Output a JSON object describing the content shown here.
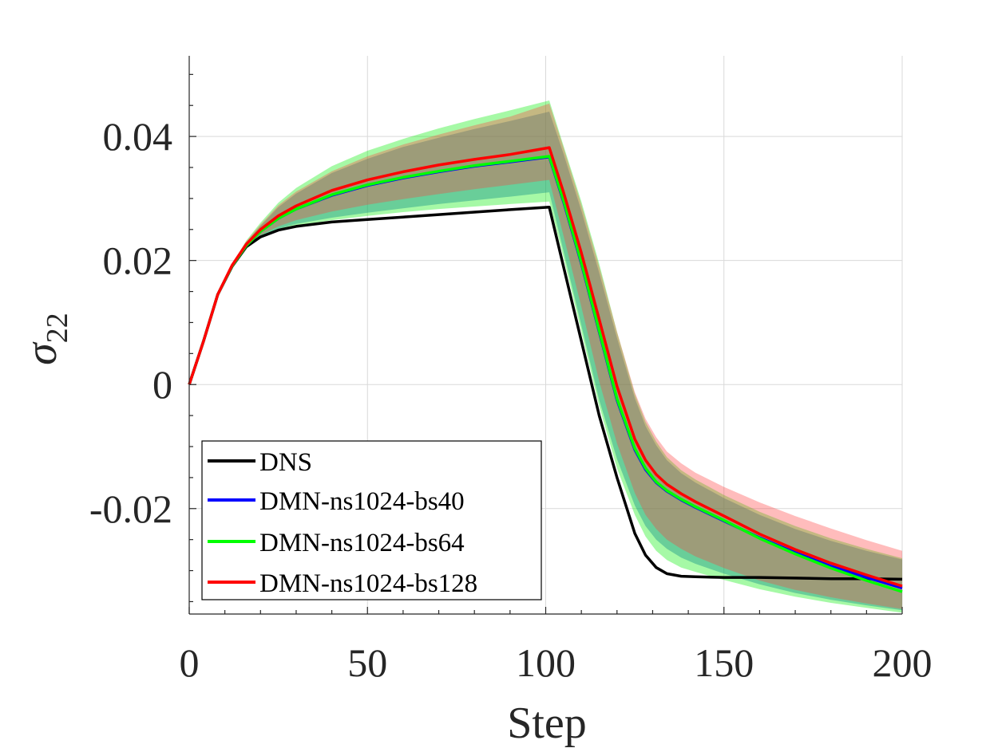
{
  "chart_data": {
    "type": "line",
    "title": "",
    "xlabel": "Step",
    "ylabel_base": "σ",
    "ylabel_subscript": "22",
    "xlim": [
      0,
      200
    ],
    "ylim": [
      -0.037,
      0.053
    ],
    "xticks": [
      0,
      50,
      100,
      150,
      200
    ],
    "xtick_labels": [
      "0",
      "50",
      "100",
      "150",
      "200"
    ],
    "yticks": [
      -0.02,
      0,
      0.02,
      0.04
    ],
    "ytick_labels": [
      "-0.02",
      "0",
      "0.02",
      "0.04"
    ],
    "grid": true,
    "legend_position": "bottom-left",
    "series": [
      {
        "name": "DNS",
        "color": "#000000",
        "x": [
          0,
          4,
          8,
          12,
          16,
          20,
          25,
          30,
          40,
          50,
          60,
          70,
          80,
          90,
          101,
          105,
          110,
          115,
          120,
          125,
          128,
          131,
          134,
          138,
          142,
          150,
          160,
          170,
          180,
          190,
          200
        ],
        "y": [
          0,
          0.007,
          0.0145,
          0.019,
          0.0222,
          0.0238,
          0.0249,
          0.0255,
          0.0262,
          0.0266,
          0.027,
          0.0274,
          0.0278,
          0.0282,
          0.0286,
          0.019,
          0.007,
          -0.005,
          -0.015,
          -0.024,
          -0.0275,
          -0.0295,
          -0.0305,
          -0.0309,
          -0.031,
          -0.0311,
          -0.0311,
          -0.0312,
          -0.0313,
          -0.0313,
          -0.0314
        ]
      },
      {
        "name": "DMN-ns1024-bs40",
        "color": "#0000ff",
        "x": [
          0,
          4,
          8,
          12,
          16,
          20,
          25,
          30,
          40,
          50,
          60,
          70,
          80,
          90,
          101,
          105,
          110,
          115,
          120,
          125,
          128,
          131,
          134,
          138,
          142,
          150,
          160,
          170,
          180,
          190,
          200
        ],
        "y": [
          0,
          0.007,
          0.0145,
          0.0191,
          0.0224,
          0.0247,
          0.0268,
          0.0283,
          0.0305,
          0.0321,
          0.0333,
          0.0343,
          0.0352,
          0.0359,
          0.0367,
          0.0295,
          0.0195,
          0.0085,
          -0.0025,
          -0.0105,
          -0.0137,
          -0.0158,
          -0.0172,
          -0.0186,
          -0.0198,
          -0.022,
          -0.0247,
          -0.0271,
          -0.0293,
          -0.0311,
          -0.0328
        ]
      },
      {
        "name": "DMN-ns1024-bs64",
        "color": "#00ff00",
        "x": [
          0,
          4,
          8,
          12,
          16,
          20,
          25,
          30,
          40,
          50,
          60,
          70,
          80,
          90,
          101,
          105,
          110,
          115,
          120,
          125,
          128,
          131,
          134,
          138,
          142,
          150,
          160,
          170,
          180,
          190,
          200
        ],
        "y": [
          0,
          0.007,
          0.0145,
          0.0191,
          0.0224,
          0.0247,
          0.0268,
          0.0283,
          0.0306,
          0.0322,
          0.0334,
          0.0344,
          0.0353,
          0.036,
          0.0368,
          0.0297,
          0.0197,
          0.0087,
          -0.0023,
          -0.0103,
          -0.0135,
          -0.0157,
          -0.0171,
          -0.0185,
          -0.0197,
          -0.0219,
          -0.0248,
          -0.0273,
          -0.0296,
          -0.0316,
          -0.0334
        ]
      },
      {
        "name": "DMN-ns1024-bs128",
        "color": "#ff0000",
        "x": [
          0,
          4,
          8,
          12,
          16,
          20,
          25,
          30,
          40,
          50,
          60,
          70,
          80,
          90,
          101,
          105,
          110,
          115,
          120,
          125,
          128,
          131,
          134,
          138,
          142,
          150,
          160,
          170,
          180,
          190,
          200
        ],
        "y": [
          0,
          0.007,
          0.0145,
          0.0192,
          0.0226,
          0.025,
          0.0272,
          0.0288,
          0.0313,
          0.033,
          0.0343,
          0.0354,
          0.0363,
          0.0371,
          0.0382,
          0.031,
          0.0212,
          0.0105,
          -0.0003,
          -0.0088,
          -0.0122,
          -0.0145,
          -0.0161,
          -0.0176,
          -0.0189,
          -0.0212,
          -0.0241,
          -0.0266,
          -0.0288,
          -0.0307,
          -0.0325
        ]
      }
    ],
    "bands": [
      {
        "name": "DMN-ns1024-bs64 range",
        "color": "#00ee00",
        "opacity": 0.35,
        "x": [
          0,
          4,
          8,
          12,
          16,
          20,
          25,
          30,
          40,
          50,
          60,
          70,
          80,
          90,
          101,
          105,
          110,
          115,
          120,
          125,
          128,
          131,
          134,
          138,
          142,
          150,
          160,
          170,
          180,
          190,
          200
        ],
        "lower": [
          0,
          0.007,
          0.0145,
          0.019,
          0.0221,
          0.0238,
          0.0249,
          0.0256,
          0.0265,
          0.0272,
          0.0278,
          0.0283,
          0.0287,
          0.0291,
          0.0295,
          0.0205,
          0.0085,
          -0.0035,
          -0.0135,
          -0.021,
          -0.0245,
          -0.0268,
          -0.0283,
          -0.0295,
          -0.0302,
          -0.0315,
          -0.033,
          -0.0342,
          -0.0352,
          -0.036,
          -0.0368
        ],
        "upper": [
          0,
          0.007,
          0.0145,
          0.0194,
          0.0232,
          0.0261,
          0.0293,
          0.0317,
          0.0352,
          0.0377,
          0.0396,
          0.0413,
          0.0428,
          0.0442,
          0.0458,
          0.0385,
          0.0295,
          0.0195,
          0.0085,
          -0.0015,
          -0.006,
          -0.0092,
          -0.0117,
          -0.0138,
          -0.0153,
          -0.0178,
          -0.0205,
          -0.0228,
          -0.0248,
          -0.0265,
          -0.028
        ]
      },
      {
        "name": "DMN-ns1024-bs40 range",
        "color": "#1f9a8a",
        "opacity": 0.45,
        "x": [
          0,
          4,
          8,
          12,
          16,
          20,
          25,
          30,
          40,
          50,
          60,
          70,
          80,
          90,
          101,
          105,
          110,
          115,
          120,
          125,
          128,
          131,
          134,
          138,
          142,
          150,
          160,
          170,
          180,
          190,
          200
        ],
        "lower": [
          0,
          0.007,
          0.0145,
          0.019,
          0.0222,
          0.0239,
          0.0251,
          0.0259,
          0.0269,
          0.0277,
          0.0284,
          0.0291,
          0.0297,
          0.0303,
          0.031,
          0.0215,
          0.0095,
          -0.0025,
          -0.012,
          -0.0195,
          -0.0228,
          -0.025,
          -0.0265,
          -0.0279,
          -0.0289,
          -0.0305,
          -0.0322,
          -0.0336,
          -0.0347,
          -0.0356,
          -0.0364
        ],
        "upper": [
          0,
          0.007,
          0.0145,
          0.0193,
          0.0229,
          0.0256,
          0.0286,
          0.0308,
          0.0341,
          0.0364,
          0.0383,
          0.0398,
          0.0412,
          0.0425,
          0.044,
          0.0372,
          0.028,
          0.018,
          0.0075,
          -0.0022,
          -0.0067,
          -0.0098,
          -0.0122,
          -0.0143,
          -0.0158,
          -0.0183,
          -0.021,
          -0.0233,
          -0.0252,
          -0.0268,
          -0.0282
        ]
      },
      {
        "name": "DMN-ns1024-bs128 range",
        "color": "#ff4040",
        "opacity": 0.35,
        "x": [
          0,
          4,
          8,
          12,
          16,
          20,
          25,
          30,
          40,
          50,
          60,
          70,
          80,
          90,
          101,
          105,
          110,
          115,
          120,
          125,
          128,
          131,
          134,
          138,
          142,
          150,
          160,
          170,
          180,
          190,
          200
        ],
        "lower": [
          0,
          0.007,
          0.0145,
          0.0191,
          0.0223,
          0.0241,
          0.0255,
          0.0265,
          0.0279,
          0.029,
          0.0299,
          0.0307,
          0.0315,
          0.0322,
          0.033,
          0.024,
          0.0125,
          0.0005,
          -0.0095,
          -0.0175,
          -0.021,
          -0.0233,
          -0.025,
          -0.0265,
          -0.0277,
          -0.0296,
          -0.0316,
          -0.0331,
          -0.0343,
          -0.0353,
          -0.0362
        ],
        "upper": [
          0,
          0.007,
          0.0145,
          0.0194,
          0.0231,
          0.0258,
          0.0289,
          0.0311,
          0.0344,
          0.0368,
          0.0387,
          0.0403,
          0.0418,
          0.0432,
          0.0453,
          0.0382,
          0.029,
          0.019,
          0.0085,
          -0.0012,
          -0.0055,
          -0.0085,
          -0.0108,
          -0.0127,
          -0.0142,
          -0.0165,
          -0.019,
          -0.0212,
          -0.0232,
          -0.0251,
          -0.0268
        ]
      }
    ]
  }
}
